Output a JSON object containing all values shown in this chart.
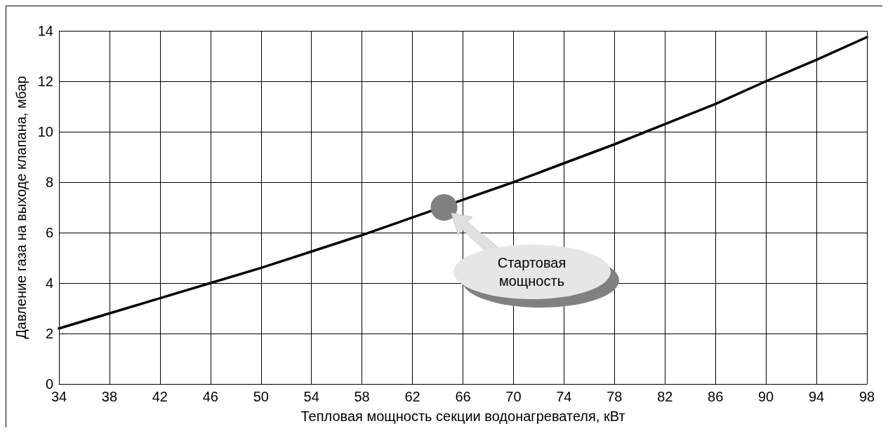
{
  "chart_data": {
    "type": "line",
    "xlabel": "Тепловая мощность секции водонагревателя, кВт",
    "ylabel": "Давление газа на выходе клапана, мбар",
    "xlim": [
      34,
      98
    ],
    "xticks": [
      34,
      38,
      42,
      46,
      50,
      54,
      58,
      62,
      66,
      70,
      74,
      78,
      82,
      86,
      90,
      94,
      98
    ],
    "ylim": [
      0,
      14
    ],
    "yticks": [
      0,
      2,
      4,
      6,
      8,
      10,
      12,
      14
    ],
    "grid": true,
    "marker": "none",
    "line_style": "solid",
    "series": [
      {
        "type": "line",
        "color": "#000000",
        "x": [
          34,
          38,
          42,
          46,
          50,
          54,
          58,
          62,
          66,
          70,
          74,
          78,
          82,
          86,
          90,
          94,
          98
        ],
        "values": [
          2.2,
          2.8,
          3.4,
          4.0,
          4.6,
          5.25,
          5.9,
          6.6,
          7.3,
          8.0,
          8.75,
          9.5,
          10.3,
          11.1,
          12.0,
          12.85,
          13.75
        ]
      },
      {
        "type": "scatter",
        "color": "#808080",
        "marker": "circle",
        "x": [
          64.5
        ],
        "values": [
          7.0
        ]
      }
    ],
    "annotations": [
      "Стартовая мощность"
    ]
  }
}
